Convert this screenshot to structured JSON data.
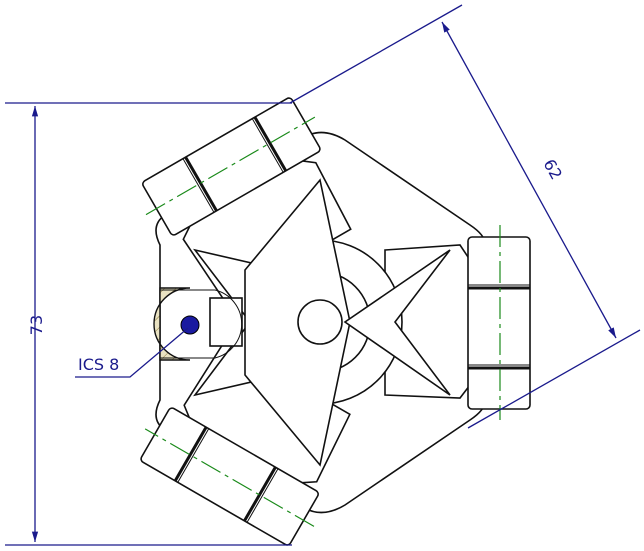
{
  "dimensions": [
    {
      "label": "73"
    },
    {
      "label": "62"
    }
  ],
  "callout": {
    "label": "ICS 8"
  }
}
